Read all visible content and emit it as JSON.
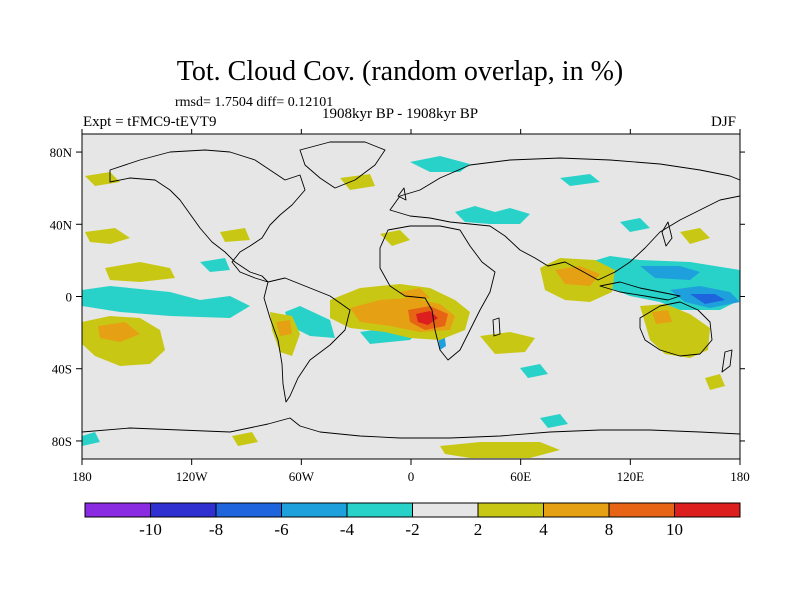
{
  "title": "Tot. Cloud Cov. (random overlap, in %)",
  "stats": "rmsd= 1.7504 diff= 0.12101",
  "experiment": "Expt = tFMC9-tEVT9",
  "period": "1908kyr BP - 1908kyr BP",
  "season": "DJF",
  "axes": {
    "lon_ticks": [
      {
        "value": -180,
        "label": "180"
      },
      {
        "value": -120,
        "label": "120W"
      },
      {
        "value": -60,
        "label": "60W"
      },
      {
        "value": 0,
        "label": "0"
      },
      {
        "value": 60,
        "label": "60E"
      },
      {
        "value": 120,
        "label": "120E"
      },
      {
        "value": 180,
        "label": "180"
      }
    ],
    "lat_ticks": [
      {
        "value": 80,
        "label": "80N"
      },
      {
        "value": 40,
        "label": "40N"
      },
      {
        "value": 0,
        "label": "0"
      },
      {
        "value": -40,
        "label": "40S"
      },
      {
        "value": -80,
        "label": "80S"
      }
    ],
    "lon_range": [
      -180,
      180
    ],
    "lat_range": [
      -90,
      90
    ]
  },
  "colorbar": {
    "colors": [
      "#8a2be2",
      "#3030d0",
      "#1e64dc",
      "#1ea0dc",
      "#28d2c8",
      "#e6e6e6",
      "#c8c814",
      "#e6a014",
      "#e66414",
      "#dc1e1e"
    ],
    "labels": [
      "-10",
      "-8",
      "-6",
      "-4",
      "-2",
      "2",
      "4",
      "8",
      "10"
    ]
  },
  "colors": {
    "ocean_background": "#e6e6e6",
    "coastline": "#000000"
  }
}
